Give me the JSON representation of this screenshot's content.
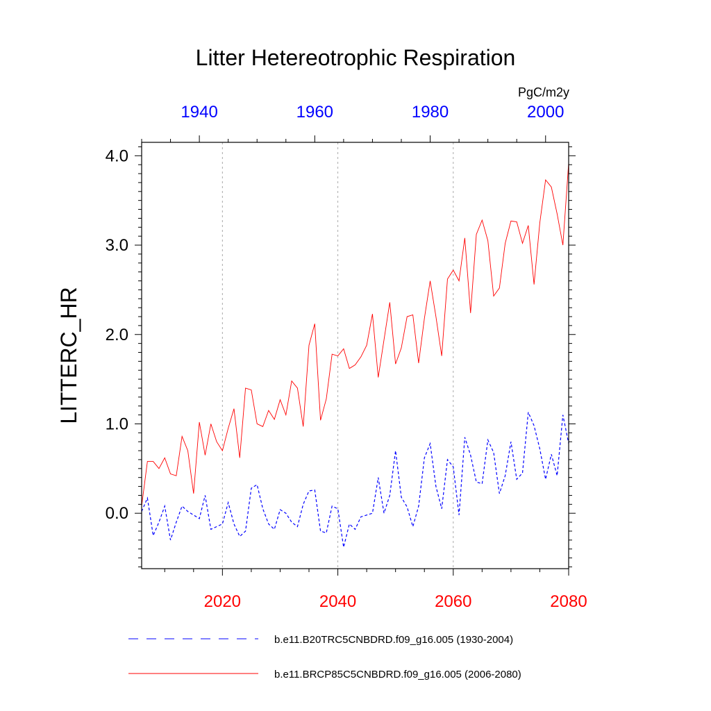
{
  "chart_data": {
    "type": "line",
    "title": "Litter Hetereotrophic Respiration",
    "ylabel": "LITTERC_HR",
    "units": "PgC/m2y",
    "ylim": [
      -0.62,
      4.15
    ],
    "yticks": [
      0.0,
      1.0,
      2.0,
      3.0,
      4.0
    ],
    "ytick_labels": [
      "0.0",
      "1.0",
      "2.0",
      "3.0",
      "4.0"
    ],
    "bottom_axis": {
      "range": [
        2006,
        2080
      ],
      "ticks": [
        2020,
        2040,
        2060,
        2080
      ],
      "tick_labels": [
        "2020",
        "2040",
        "2060",
        "2080"
      ],
      "color": "#ff0000"
    },
    "top_axis": {
      "range": [
        1930,
        2004
      ],
      "ticks": [
        1940,
        1960,
        1980,
        2000
      ],
      "tick_labels": [
        "1940",
        "1960",
        "1980",
        "2000"
      ],
      "color": "#0000ff"
    },
    "series": [
      {
        "name": "b.e11.B20TRC5CNBDRD.f09_g16.005 (1930-2004)",
        "axis": "top",
        "color": "#0000ff",
        "style": "dashed",
        "start_year": 1930,
        "values": [
          0.02,
          0.17,
          -0.25,
          -0.1,
          0.08,
          -0.3,
          -0.1,
          0.08,
          0.02,
          -0.02,
          -0.06,
          0.2,
          -0.18,
          -0.15,
          -0.12,
          0.12,
          -0.12,
          -0.26,
          -0.2,
          0.28,
          0.32,
          0.05,
          -0.12,
          -0.18,
          0.04,
          0.0,
          -0.1,
          -0.15,
          0.1,
          0.25,
          0.26,
          -0.2,
          -0.22,
          0.08,
          0.05,
          -0.38,
          -0.12,
          -0.18,
          -0.04,
          -0.02,
          0.0,
          0.4,
          0.0,
          0.2,
          0.7,
          0.18,
          0.07,
          -0.15,
          0.08,
          0.62,
          0.78,
          0.3,
          0.05,
          0.6,
          0.52,
          -0.02,
          0.85,
          0.65,
          0.35,
          0.33,
          0.82,
          0.68,
          0.22,
          0.42,
          0.8,
          0.38,
          0.45,
          1.13,
          0.98,
          0.72,
          0.38,
          0.66,
          0.42,
          1.1,
          0.78
        ]
      },
      {
        "name": "b.e11.BRCP85C5CNBDRD.f09_g16.005 (2006-2080)",
        "axis": "bottom",
        "color": "#ff0000",
        "style": "solid",
        "start_year": 2006,
        "values": [
          0.08,
          0.58,
          0.58,
          0.5,
          0.62,
          0.44,
          0.42,
          0.86,
          0.7,
          0.22,
          1.02,
          0.65,
          1.0,
          0.8,
          0.7,
          0.95,
          1.17,
          0.62,
          1.4,
          1.38,
          1.0,
          0.97,
          1.15,
          1.05,
          1.27,
          1.1,
          1.48,
          1.4,
          0.97,
          1.88,
          2.12,
          1.04,
          1.28,
          1.78,
          1.76,
          1.84,
          1.62,
          1.66,
          1.75,
          1.88,
          2.23,
          1.52,
          1.94,
          2.36,
          1.67,
          1.85,
          2.2,
          2.22,
          1.68,
          2.18,
          2.6,
          2.2,
          1.76,
          2.62,
          2.72,
          2.6,
          3.08,
          2.24,
          3.12,
          3.28,
          3.05,
          2.43,
          2.52,
          3.02,
          3.27,
          3.26,
          3.02,
          3.22,
          2.56,
          3.25,
          3.73,
          3.65,
          3.35,
          3.0,
          3.92
        ]
      }
    ],
    "grid": "vertical dotted at bottom-axis ticks"
  }
}
